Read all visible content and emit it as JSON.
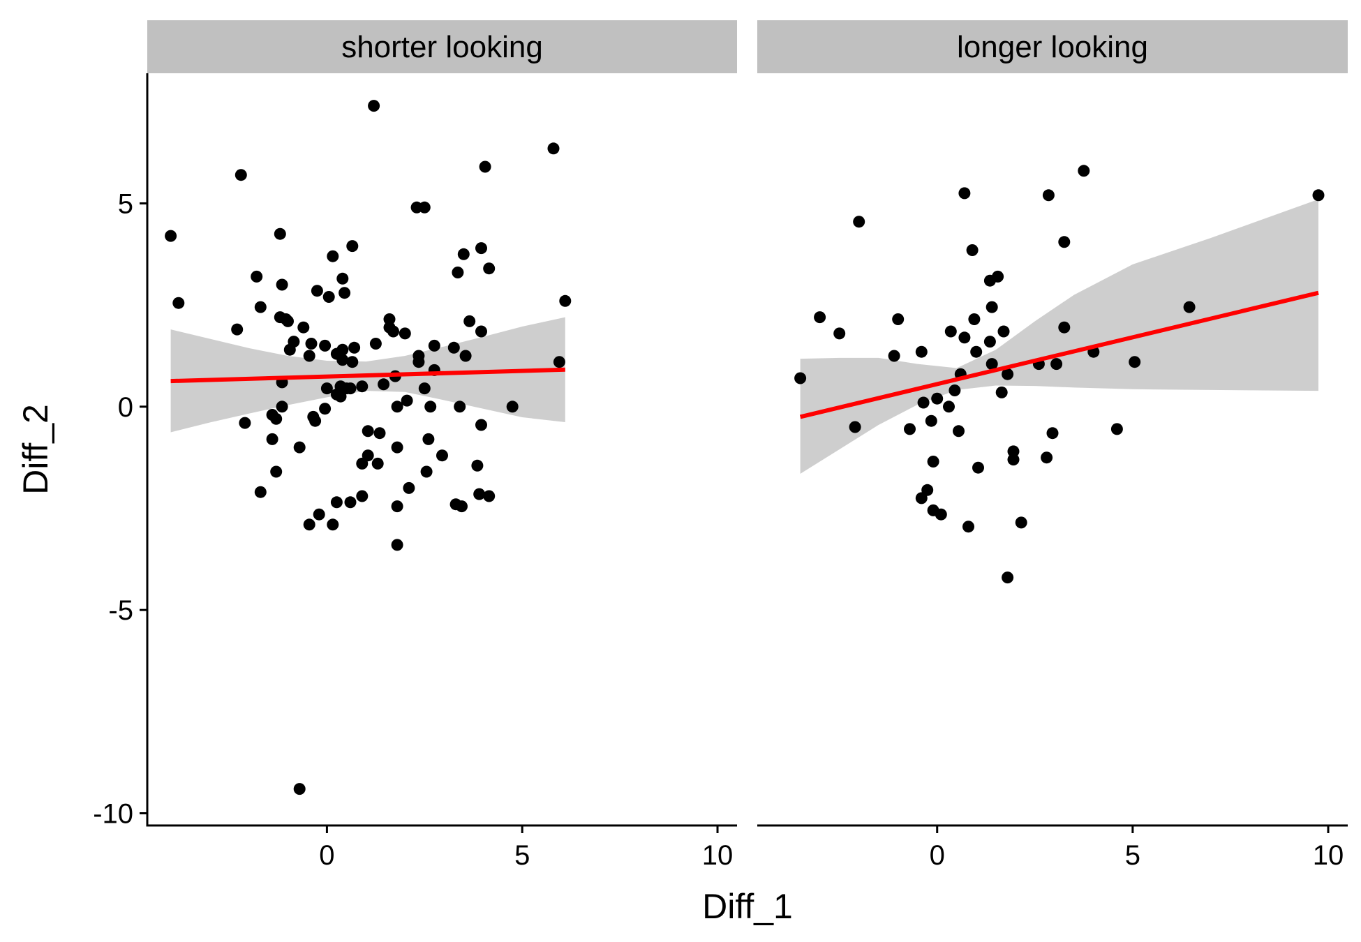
{
  "chart_data": {
    "type": "scatter",
    "xlabel": "Diff_1",
    "ylabel": "Diff_2",
    "xlim": [
      -4.6,
      10.5
    ],
    "ylim": [
      -10.3,
      8.2
    ],
    "x_ticks": [
      0,
      5,
      10
    ],
    "y_ticks": [
      5,
      0,
      -5,
      -10
    ],
    "grid": false,
    "legend": "none",
    "colors": {
      "points": "#000000",
      "fit_line": "#ff0000",
      "confidence_band": "#bebebe",
      "strip_background": "#c0c0c0"
    },
    "panels": [
      {
        "title": "shorter looking",
        "points": [
          [
            -4.0,
            4.2
          ],
          [
            -3.8,
            2.55
          ],
          [
            -2.3,
            1.9
          ],
          [
            -2.2,
            5.7
          ],
          [
            -2.1,
            -0.4
          ],
          [
            -1.8,
            3.2
          ],
          [
            -1.7,
            2.45
          ],
          [
            -1.7,
            -2.1
          ],
          [
            -1.4,
            -0.2
          ],
          [
            -1.4,
            -0.8
          ],
          [
            -1.3,
            -1.6
          ],
          [
            -1.3,
            -0.3
          ],
          [
            -1.2,
            4.25
          ],
          [
            -1.2,
            2.2
          ],
          [
            -1.15,
            3.0
          ],
          [
            -1.15,
            0.6
          ],
          [
            -1.15,
            0.0
          ],
          [
            -1.05,
            2.15
          ],
          [
            -1.0,
            2.1
          ],
          [
            -0.95,
            1.4
          ],
          [
            -0.85,
            1.6
          ],
          [
            -0.7,
            -1.0
          ],
          [
            -0.6,
            1.95
          ],
          [
            -0.7,
            -9.4
          ],
          [
            -0.45,
            1.25
          ],
          [
            -0.45,
            -2.9
          ],
          [
            -0.4,
            1.55
          ],
          [
            -0.35,
            -0.25
          ],
          [
            -0.3,
            -0.35
          ],
          [
            -0.25,
            2.85
          ],
          [
            -0.2,
            -2.65
          ],
          [
            -0.05,
            1.5
          ],
          [
            -0.05,
            -0.05
          ],
          [
            0.0,
            0.45
          ],
          [
            0.05,
            2.7
          ],
          [
            0.15,
            3.7
          ],
          [
            0.15,
            -2.9
          ],
          [
            0.25,
            1.3
          ],
          [
            0.25,
            0.3
          ],
          [
            0.25,
            -2.35
          ],
          [
            0.35,
            0.25
          ],
          [
            0.35,
            0.5
          ],
          [
            0.4,
            3.15
          ],
          [
            0.4,
            1.4
          ],
          [
            0.4,
            1.15
          ],
          [
            0.45,
            2.8
          ],
          [
            0.5,
            0.45
          ],
          [
            0.6,
            0.45
          ],
          [
            0.6,
            -2.35
          ],
          [
            0.65,
            3.95
          ],
          [
            0.65,
            1.1
          ],
          [
            0.7,
            1.45
          ],
          [
            0.9,
            0.5
          ],
          [
            0.9,
            -1.4
          ],
          [
            0.9,
            -2.2
          ],
          [
            1.05,
            -0.6
          ],
          [
            1.05,
            -1.2
          ],
          [
            1.2,
            7.4
          ],
          [
            1.25,
            1.55
          ],
          [
            1.3,
            -1.4
          ],
          [
            1.35,
            -0.65
          ],
          [
            1.45,
            0.55
          ],
          [
            1.6,
            2.15
          ],
          [
            1.6,
            1.95
          ],
          [
            1.7,
            1.85
          ],
          [
            1.75,
            0.75
          ],
          [
            1.8,
            -1.0
          ],
          [
            1.8,
            0.0
          ],
          [
            1.8,
            -2.45
          ],
          [
            1.8,
            -3.4
          ],
          [
            2.0,
            1.8
          ],
          [
            2.05,
            0.15
          ],
          [
            2.1,
            -2.0
          ],
          [
            2.3,
            4.9
          ],
          [
            2.35,
            1.25
          ],
          [
            2.35,
            1.1
          ],
          [
            2.5,
            4.9
          ],
          [
            2.5,
            0.45
          ],
          [
            2.55,
            -1.6
          ],
          [
            2.6,
            -0.8
          ],
          [
            2.65,
            0.0
          ],
          [
            2.75,
            0.9
          ],
          [
            2.75,
            1.5
          ],
          [
            2.95,
            -1.2
          ],
          [
            3.25,
            1.45
          ],
          [
            3.3,
            -2.4
          ],
          [
            3.35,
            3.3
          ],
          [
            3.4,
            0.0
          ],
          [
            3.45,
            -2.45
          ],
          [
            3.5,
            3.75
          ],
          [
            3.55,
            1.25
          ],
          [
            3.65,
            2.1
          ],
          [
            3.85,
            -1.45
          ],
          [
            3.9,
            -2.15
          ],
          [
            3.95,
            3.9
          ],
          [
            3.95,
            -0.45
          ],
          [
            3.95,
            1.85
          ],
          [
            4.05,
            5.9
          ],
          [
            4.15,
            3.4
          ],
          [
            4.15,
            -2.2
          ],
          [
            4.75,
            0.0
          ],
          [
            5.8,
            6.35
          ],
          [
            5.95,
            1.1
          ],
          [
            6.1,
            2.6
          ]
        ],
        "fit": {
          "x": [
            -4.0,
            6.1
          ],
          "y": [
            0.63,
            0.91
          ]
        },
        "band": {
          "x": [
            -4.0,
            -3.0,
            -2.0,
            -1.0,
            0.0,
            1.0,
            2.0,
            3.0,
            4.0,
            5.0,
            6.1
          ],
          "lower": [
            -0.63,
            -0.39,
            -0.17,
            0.04,
            0.23,
            0.39,
            0.36,
            0.16,
            -0.05,
            -0.26,
            -0.38
          ],
          "upper": [
            1.9,
            1.67,
            1.44,
            1.25,
            1.13,
            1.11,
            1.25,
            1.48,
            1.72,
            1.97,
            2.2
          ]
        }
      },
      {
        "title": "longer looking",
        "points": [
          [
            -3.5,
            0.7
          ],
          [
            -3.0,
            2.2
          ],
          [
            -2.5,
            1.8
          ],
          [
            -2.1,
            -0.5
          ],
          [
            -2.0,
            4.55
          ],
          [
            -1.1,
            1.25
          ],
          [
            -1.0,
            2.15
          ],
          [
            -0.7,
            -0.55
          ],
          [
            -0.4,
            1.35
          ],
          [
            -0.4,
            -2.25
          ],
          [
            -0.35,
            0.1
          ],
          [
            -0.25,
            -2.05
          ],
          [
            -0.15,
            -0.35
          ],
          [
            -0.1,
            -1.35
          ],
          [
            -0.1,
            -2.55
          ],
          [
            0.0,
            0.2
          ],
          [
            0.1,
            -2.65
          ],
          [
            0.3,
            0.0
          ],
          [
            0.35,
            1.85
          ],
          [
            0.45,
            0.4
          ],
          [
            0.55,
            -0.6
          ],
          [
            0.6,
            0.8
          ],
          [
            0.7,
            5.25
          ],
          [
            0.7,
            1.7
          ],
          [
            0.8,
            -2.95
          ],
          [
            0.9,
            3.85
          ],
          [
            0.95,
            2.15
          ],
          [
            1.0,
            1.35
          ],
          [
            1.05,
            -1.5
          ],
          [
            1.35,
            3.1
          ],
          [
            1.35,
            1.6
          ],
          [
            1.4,
            2.45
          ],
          [
            1.4,
            1.05
          ],
          [
            1.55,
            3.2
          ],
          [
            1.65,
            0.35
          ],
          [
            1.7,
            1.85
          ],
          [
            1.8,
            0.8
          ],
          [
            1.8,
            -4.2
          ],
          [
            1.95,
            -1.1
          ],
          [
            1.95,
            -1.3
          ],
          [
            2.15,
            -2.85
          ],
          [
            2.6,
            1.05
          ],
          [
            2.8,
            -1.25
          ],
          [
            2.85,
            5.2
          ],
          [
            2.95,
            -0.65
          ],
          [
            3.05,
            1.05
          ],
          [
            3.25,
            4.05
          ],
          [
            3.25,
            1.95
          ],
          [
            3.75,
            5.8
          ],
          [
            4.0,
            1.35
          ],
          [
            4.6,
            -0.55
          ],
          [
            5.05,
            1.1
          ],
          [
            6.45,
            2.45
          ],
          [
            9.75,
            5.2
          ]
        ],
        "fit": {
          "x": [
            -3.5,
            9.75
          ],
          "y": [
            -0.25,
            2.8
          ]
        },
        "band": {
          "x": [
            -3.5,
            -2.5,
            -1.5,
            -0.5,
            0.5,
            1.5,
            2.5,
            3.5,
            5.0,
            7.0,
            9.75
          ],
          "lower": [
            -1.65,
            -1.05,
            -0.45,
            0.05,
            0.41,
            0.52,
            0.51,
            0.47,
            0.43,
            0.41,
            0.39
          ],
          "upper": [
            1.18,
            1.2,
            1.2,
            1.05,
            0.95,
            1.4,
            2.1,
            2.75,
            3.5,
            4.15,
            5.1
          ]
        }
      }
    ]
  }
}
